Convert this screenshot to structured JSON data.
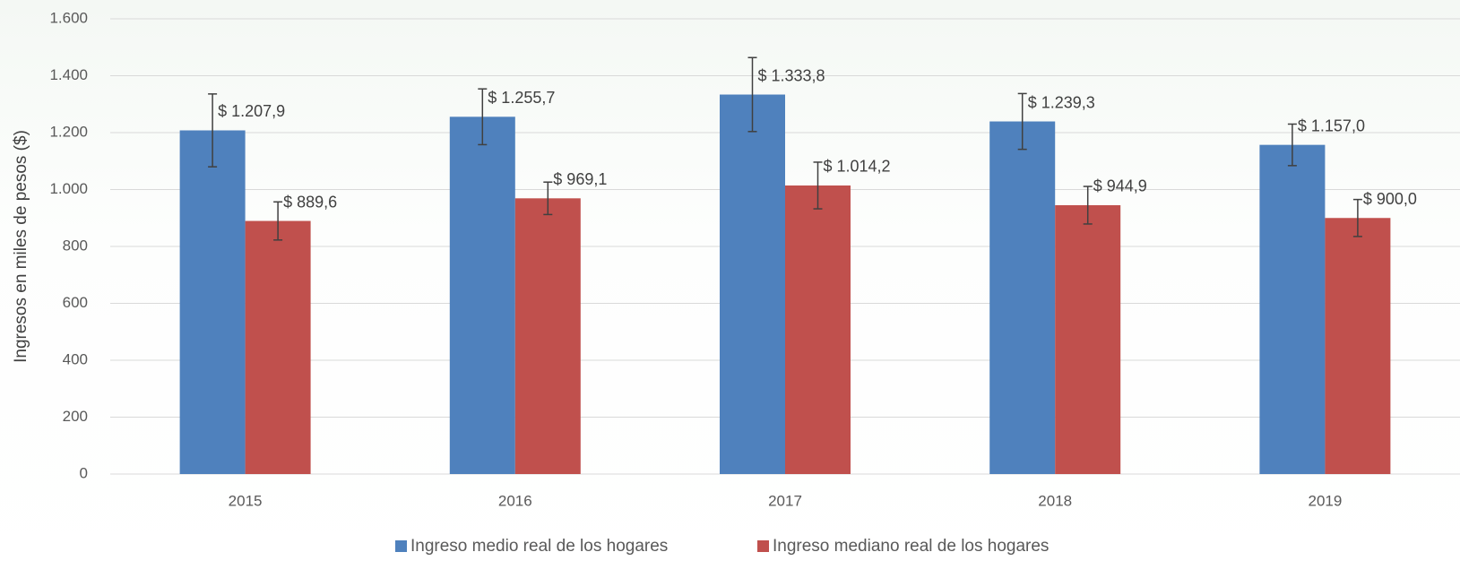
{
  "chart_data": {
    "type": "bar",
    "y_label": "Ingresos en miles de pesos ($)",
    "categories": [
      "2015",
      "2016",
      "2017",
      "2018",
      "2019"
    ],
    "series": [
      {
        "name": "Ingreso medio real de los hogares",
        "color": "#4f81bd",
        "values": [
          1207.9,
          1255.7,
          1333.8,
          1239.3,
          1157.0
        ],
        "value_labels": [
          "$ 1.207,9",
          "$ 1.255,7",
          "$ 1.333,8",
          "$ 1.239,3",
          "$ 1.157,0"
        ],
        "errors": [
          128,
          98,
          130,
          98,
          73
        ]
      },
      {
        "name": "Ingreso mediano real de los hogares",
        "color": "#c0504d",
        "values": [
          889.6,
          969.1,
          1014.2,
          944.9,
          900.0
        ],
        "value_labels": [
          "$ 889,6",
          "$ 969,1",
          "$ 1.014,2",
          "$ 944,9",
          "$ 900,0"
        ],
        "errors": [
          67,
          57,
          82,
          66,
          65
        ]
      }
    ],
    "ylim": [
      0,
      1600
    ],
    "yticks": [
      0,
      200,
      400,
      600,
      800,
      {
        "value": 1000,
        "label": "1.000"
      },
      {
        "value": 1200,
        "label": "1.200"
      },
      {
        "value": 1400,
        "label": "1.400"
      },
      {
        "value": 1600,
        "label": "1.600"
      }
    ],
    "grid": true,
    "legend": "bottom"
  }
}
